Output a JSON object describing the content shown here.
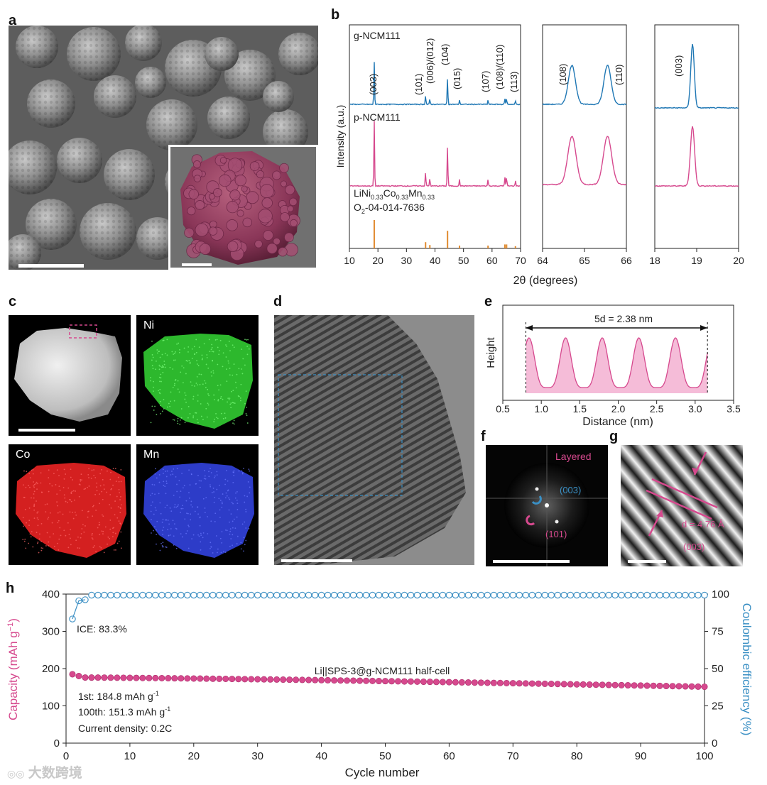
{
  "panel_labels": {
    "a": "a",
    "b": "b",
    "c": "c",
    "d": "d",
    "e": "e",
    "f": "f",
    "g": "g",
    "h": "h"
  },
  "panel_b": {
    "sample_top": "g-NCM111",
    "sample_mid": "p-NCM111",
    "ylabel": "Intensity (a.u.)",
    "xlabel": "2θ (degrees)",
    "ref_line1": "LiNi0.33Co0.33Mn0.33",
    "ref_line2": "O2-04-014-7636",
    "peak_labels": [
      "(003)",
      "(101)",
      "(006)/(012)",
      "(104)",
      "(015)",
      "(107)",
      "(108)/(110)",
      "(113)"
    ],
    "zoom1_labels": [
      "(108)",
      "(110)"
    ],
    "zoom2_labels": [
      "(003)"
    ],
    "x_ticks_main": [
      "10",
      "20",
      "30",
      "40",
      "50",
      "60",
      "70"
    ],
    "x_ticks_zoom1": [
      "64",
      "65",
      "66"
    ],
    "x_ticks_zoom2": [
      "18",
      "19",
      "20"
    ]
  },
  "panel_c": {
    "labels": [
      "Ni",
      "Co",
      "Mn"
    ]
  },
  "panel_e": {
    "annotation": "5d = 2.38 nm",
    "ylabel": "Height",
    "xlabel": "Distance (nm)",
    "x_ticks": [
      "0.5",
      "1.0",
      "1.5",
      "2.0",
      "2.5",
      "3.0",
      "3.5"
    ]
  },
  "panel_f": {
    "title": "Layered",
    "spot1": "(003)",
    "spot2": "(101)"
  },
  "panel_g": {
    "d_label": "d = 4.76 Å",
    "plane": "(003)"
  },
  "watermark": "大数跨境",
  "colors": {
    "blue": "#1f77b4",
    "pink": "#d6498e",
    "orange": "#e08a2e",
    "coulombic": "#3a8fc4"
  },
  "chart_data": {
    "type": "scatter",
    "title": "",
    "xlabel": "Cycle number",
    "ylabel": "Capacity (mAh g−1)",
    "y2label": "Coulombic efficiency (%)",
    "xlim": [
      0,
      100
    ],
    "ylim": [
      0,
      400
    ],
    "y2lim": [
      0,
      100
    ],
    "x_ticks": [
      "0",
      "10",
      "20",
      "30",
      "40",
      "50",
      "60",
      "70",
      "80",
      "90",
      "100"
    ],
    "y_ticks": [
      "0",
      "100",
      "200",
      "300",
      "400"
    ],
    "y2_ticks": [
      "0",
      "25",
      "50",
      "75",
      "100"
    ],
    "annotations": {
      "ice": "ICE: 83.3%",
      "cell": "Li||SPS-3@g-NCM111 half-cell",
      "first": "1st: 184.8 mAh g",
      "hundredth": "100th: 151.3 mAh g",
      "current": "Current density: 0.2C",
      "unit_exp": "-1"
    },
    "series": [
      {
        "name": "Capacity",
        "axis": "left",
        "first": 184.8,
        "second": 180,
        "third": 176,
        "last": 151.3,
        "count": 100
      },
      {
        "name": "Coulombic efficiency",
        "axis": "right",
        "first": 83.3,
        "second": 95.5,
        "third": 96.2,
        "steady": 99.3,
        "count": 100
      }
    ]
  }
}
